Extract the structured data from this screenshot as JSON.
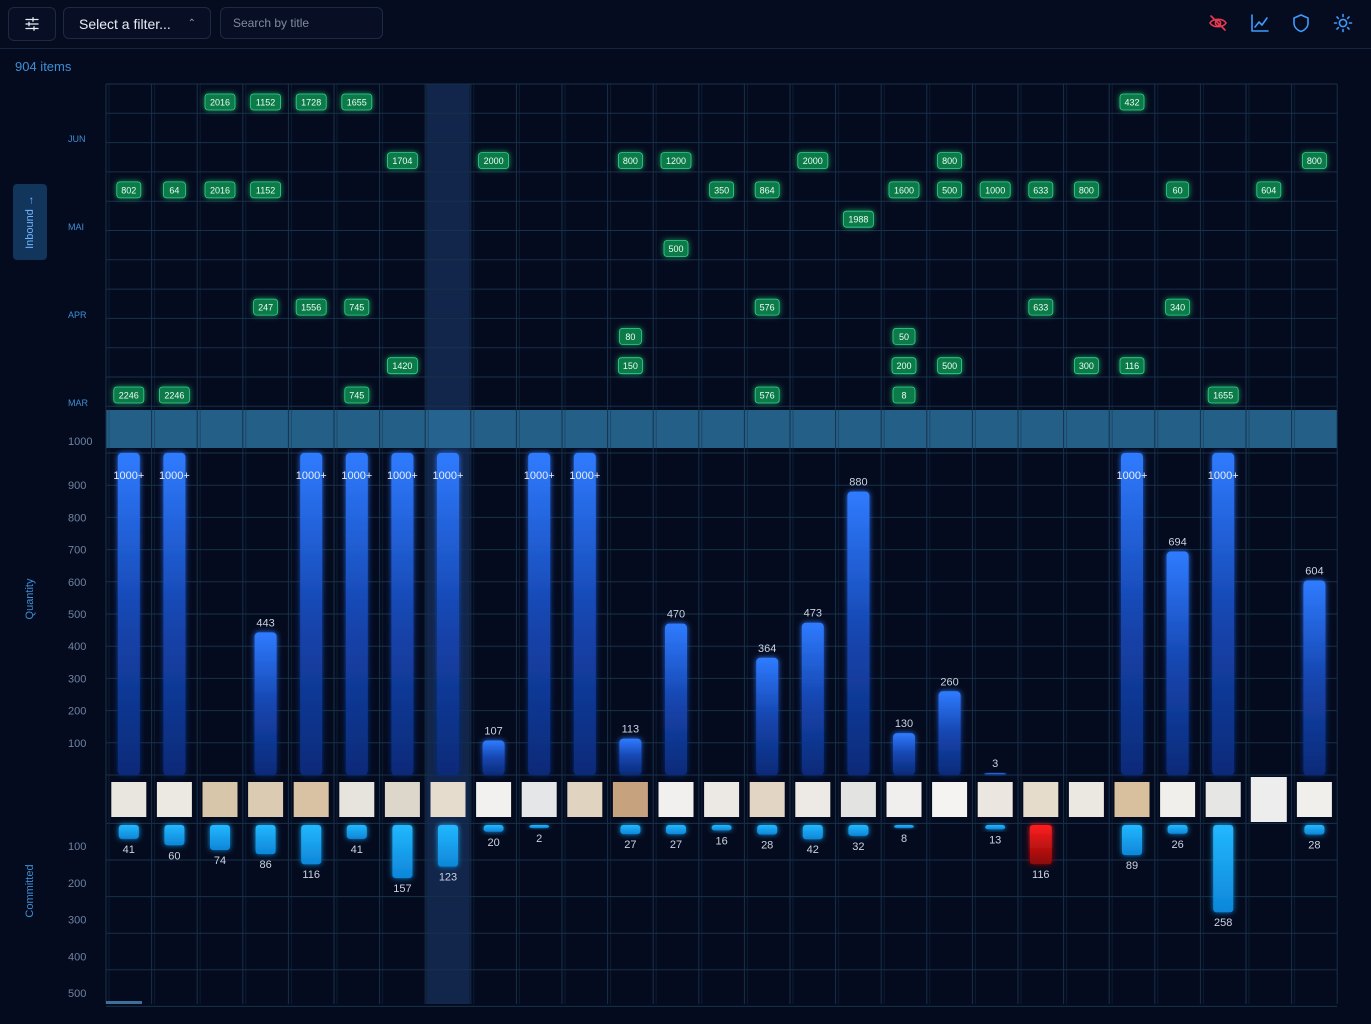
{
  "toolbar": {
    "filter_placeholder": "Select a filter...",
    "search_placeholder": "Search by title",
    "icons": [
      "sliders-icon",
      "eye-off-icon",
      "line-chart-icon",
      "shield-icon",
      "sun-icon"
    ],
    "eye_off_color": "#e8394f",
    "icon_color": "#3d9bff"
  },
  "item_count": "904 items",
  "inbound_tab_label": "Inbound",
  "colors": {
    "background": "#050b1e",
    "bar_top": "#2f7bff",
    "bar_bottom": "#0c2a78",
    "badge": "#0e7a4a",
    "committed": "#1fb2ff",
    "committed_alert": "#e01515",
    "cap_band": "#2a6f9a"
  },
  "chart_data": {
    "type": "bar",
    "columns": 27,
    "inbound": {
      "title": "Inbound",
      "y_ticks": [
        "JUN",
        "MAI",
        "APR",
        "MAR"
      ],
      "rows": 11,
      "entries": [
        {
          "col": 0,
          "row": 3,
          "value": "802"
        },
        {
          "col": 0,
          "row": 10,
          "value": "2246"
        },
        {
          "col": 1,
          "row": 3,
          "value": "64"
        },
        {
          "col": 1,
          "row": 10,
          "value": "2246"
        },
        {
          "col": 2,
          "row": 0,
          "value": "2016"
        },
        {
          "col": 2,
          "row": 3,
          "value": "2016"
        },
        {
          "col": 3,
          "row": 0,
          "value": "1152"
        },
        {
          "col": 3,
          "row": 3,
          "value": "1152"
        },
        {
          "col": 3,
          "row": 7,
          "value": "247"
        },
        {
          "col": 4,
          "row": 0,
          "value": "1728"
        },
        {
          "col": 4,
          "row": 7,
          "value": "1556"
        },
        {
          "col": 5,
          "row": 0,
          "value": "1655"
        },
        {
          "col": 5,
          "row": 7,
          "value": "745"
        },
        {
          "col": 5,
          "row": 10,
          "value": "745"
        },
        {
          "col": 6,
          "row": 2,
          "value": "1704"
        },
        {
          "col": 6,
          "row": 9,
          "value": "1420"
        },
        {
          "col": 8,
          "row": 2,
          "value": "2000"
        },
        {
          "col": 11,
          "row": 2,
          "value": "800"
        },
        {
          "col": 11,
          "row": 8,
          "value": "80"
        },
        {
          "col": 11,
          "row": 9,
          "value": "150"
        },
        {
          "col": 12,
          "row": 2,
          "value": "1200"
        },
        {
          "col": 12,
          "row": 5,
          "value": "500"
        },
        {
          "col": 13,
          "row": 3,
          "value": "350"
        },
        {
          "col": 14,
          "row": 3,
          "value": "864"
        },
        {
          "col": 14,
          "row": 7,
          "value": "576"
        },
        {
          "col": 14,
          "row": 10,
          "value": "576"
        },
        {
          "col": 15,
          "row": 2,
          "value": "2000"
        },
        {
          "col": 16,
          "row": 4,
          "value": "1988"
        },
        {
          "col": 17,
          "row": 3,
          "value": "1600"
        },
        {
          "col": 17,
          "row": 8,
          "value": "50"
        },
        {
          "col": 17,
          "row": 9,
          "value": "200"
        },
        {
          "col": 17,
          "row": 10,
          "value": "8"
        },
        {
          "col": 18,
          "row": 2,
          "value": "800"
        },
        {
          "col": 18,
          "row": 3,
          "value": "500"
        },
        {
          "col": 18,
          "row": 9,
          "value": "500"
        },
        {
          "col": 19,
          "row": 3,
          "value": "1000"
        },
        {
          "col": 20,
          "row": 3,
          "value": "633"
        },
        {
          "col": 20,
          "row": 7,
          "value": "633"
        },
        {
          "col": 21,
          "row": 3,
          "value": "800"
        },
        {
          "col": 21,
          "row": 9,
          "value": "300"
        },
        {
          "col": 22,
          "row": 0,
          "value": "432"
        },
        {
          "col": 22,
          "row": 9,
          "value": "116"
        },
        {
          "col": 23,
          "row": 3,
          "value": "60"
        },
        {
          "col": 23,
          "row": 7,
          "value": "340"
        },
        {
          "col": 24,
          "row": 10,
          "value": "1655"
        },
        {
          "col": 25,
          "row": 3,
          "value": "604"
        },
        {
          "col": 26,
          "row": 2,
          "value": "800"
        }
      ]
    },
    "quantity": {
      "title": "Quantity",
      "y_ticks": [
        100,
        200,
        300,
        400,
        500,
        600,
        700,
        800,
        900,
        1000
      ],
      "ylim": [
        0,
        1000
      ],
      "values": [
        1000,
        1000,
        null,
        443,
        1000,
        1000,
        1000,
        1000,
        107,
        1000,
        1000,
        113,
        470,
        null,
        364,
        473,
        880,
        130,
        260,
        3,
        null,
        null,
        1000,
        694,
        1000,
        null,
        604
      ],
      "labels": [
        "1000+",
        "1000+",
        "",
        "443",
        "1000+",
        "1000+",
        "1000+",
        "1000+",
        "107",
        "1000+",
        "1000+",
        "113",
        "470",
        "",
        "364",
        "473",
        "880",
        "130",
        "260",
        "3",
        "",
        "",
        "1000+",
        "694",
        "1000+",
        "",
        "604"
      ]
    },
    "committed": {
      "title": "Committed",
      "y_ticks": [
        100,
        200,
        300,
        400,
        500
      ],
      "ylim": [
        0,
        500
      ],
      "values": [
        41,
        60,
        74,
        86,
        116,
        41,
        157,
        123,
        20,
        2,
        null,
        27,
        27,
        16,
        28,
        42,
        32,
        8,
        null,
        13,
        116,
        null,
        89,
        26,
        258,
        null,
        28
      ],
      "alert_cols": [
        20
      ]
    },
    "highlighted_column": 7
  }
}
